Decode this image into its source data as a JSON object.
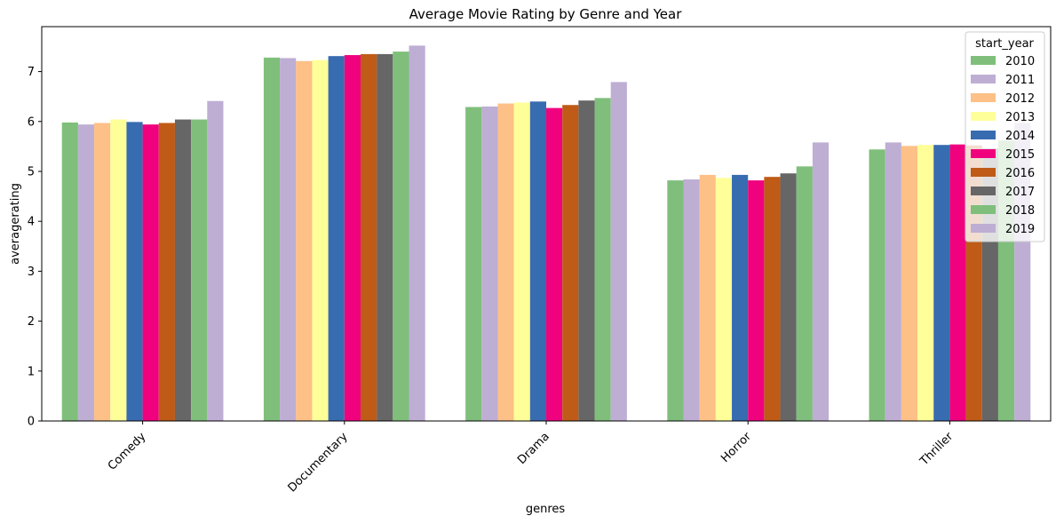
{
  "chart_data": {
    "type": "bar",
    "title": "Average Movie Rating by Genre and Year",
    "xlabel": "genres",
    "ylabel": "averagerating",
    "ylim": [
      0,
      7.9
    ],
    "yticks": [
      0,
      1,
      2,
      3,
      4,
      5,
      6,
      7
    ],
    "categories": [
      "Comedy",
      "Documentary",
      "Drama",
      "Horror",
      "Thriller"
    ],
    "legend": {
      "title": "start_year",
      "placement": "upper-right"
    },
    "series": [
      {
        "name": "2010",
        "color": "#7fbf7b",
        "values": [
          5.98,
          7.28,
          6.29,
          4.82,
          5.44
        ]
      },
      {
        "name": "2011",
        "color": "#beaed4",
        "values": [
          5.94,
          7.27,
          6.3,
          4.84,
          5.58
        ]
      },
      {
        "name": "2012",
        "color": "#fdc086",
        "values": [
          5.97,
          7.21,
          6.36,
          4.93,
          5.51
        ]
      },
      {
        "name": "2013",
        "color": "#ffff99",
        "values": [
          6.04,
          7.23,
          6.38,
          4.87,
          5.53
        ]
      },
      {
        "name": "2014",
        "color": "#386cb0",
        "values": [
          5.99,
          7.31,
          6.4,
          4.93,
          5.53
        ]
      },
      {
        "name": "2015",
        "color": "#f0027f",
        "values": [
          5.94,
          7.33,
          6.27,
          4.82,
          5.54
        ]
      },
      {
        "name": "2016",
        "color": "#bf5b17",
        "values": [
          5.97,
          7.35,
          6.33,
          4.89,
          5.52
        ]
      },
      {
        "name": "2017",
        "color": "#666666",
        "values": [
          6.04,
          7.35,
          6.42,
          4.96,
          5.46
        ]
      },
      {
        "name": "2018",
        "color": "#7fbf7b",
        "values": [
          6.04,
          7.4,
          6.47,
          5.1,
          5.62
        ]
      },
      {
        "name": "2019",
        "color": "#beaed4",
        "values": [
          6.41,
          7.52,
          6.79,
          5.58,
          5.97
        ]
      }
    ]
  }
}
